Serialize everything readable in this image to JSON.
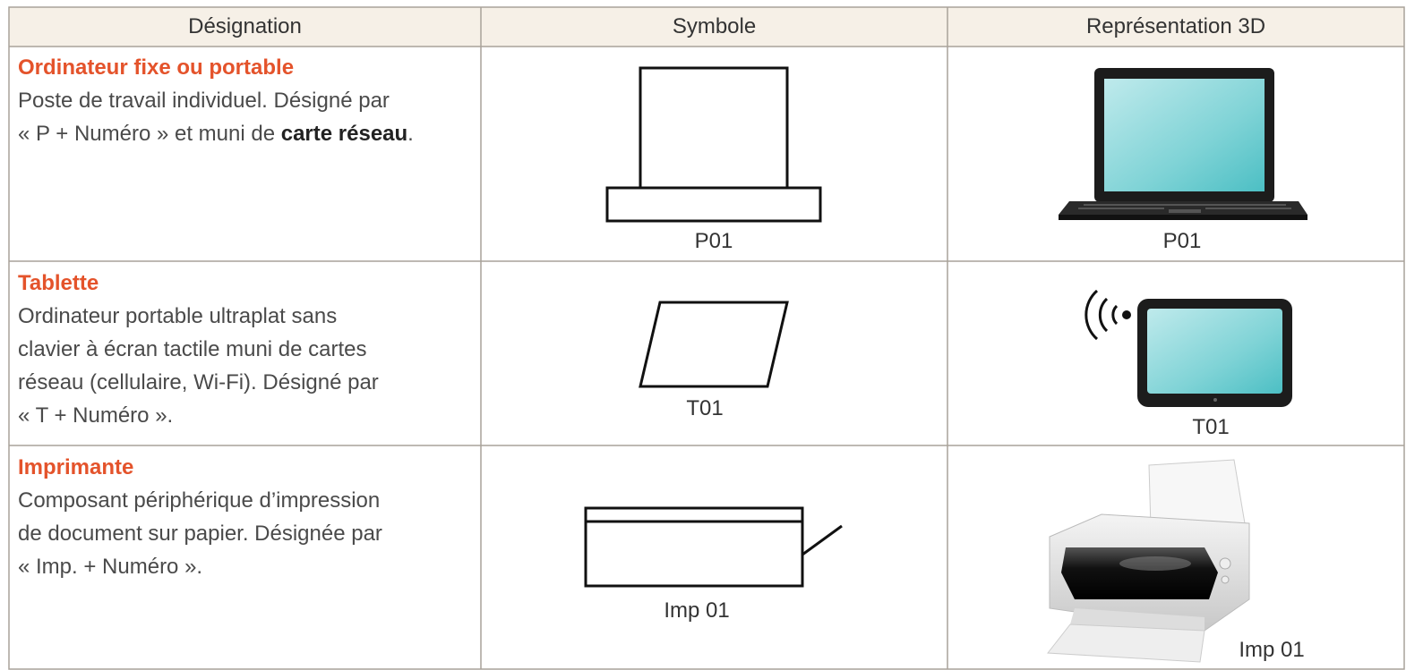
{
  "table": {
    "header": [
      "Désignation",
      "Symbole",
      "Représentation 3D"
    ],
    "rows": [
      {
        "title": "Ordinateur fixe ou portable",
        "lines": [
          "Poste de travail individuel. Désigné par",
          "« P + Numéro » et muni de"
        ],
        "emphasis": "carte réseau",
        "end": ".",
        "symbol_label": "P01",
        "image_label": "P01"
      },
      {
        "title": "Tablette",
        "lines": [
          "Ordinateur portable ultraplat sans",
          "clavier à écran tactile muni de cartes",
          "réseau (cellulaire, Wi-Fi). Désigné par",
          "« T + Numéro »."
        ],
        "symbol_label": "T01",
        "image_label": "T01"
      },
      {
        "title": "Imprimante",
        "lines": [
          "Composant périphérique d’impression",
          "de document sur papier. Désignée par",
          "« Imp. + Numéro »."
        ],
        "symbol_label": "Imp 01",
        "image_label": "Imp 01"
      }
    ]
  }
}
